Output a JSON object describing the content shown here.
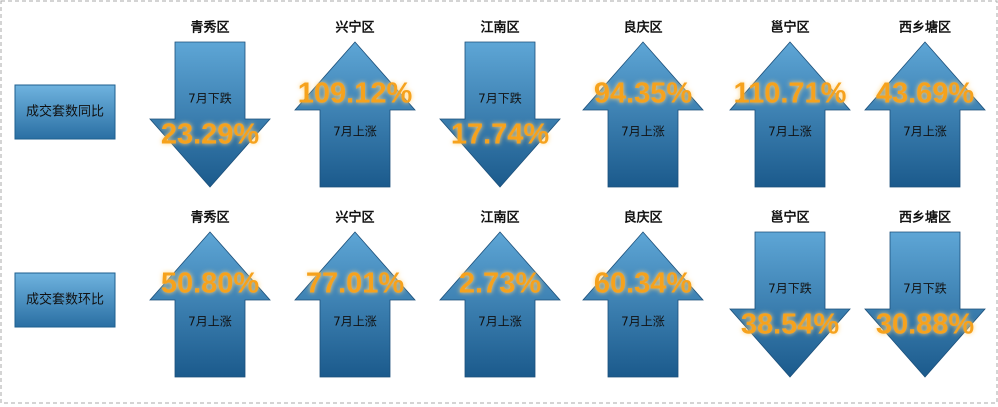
{
  "rows": [
    {
      "label": "成交套数同比",
      "items": [
        {
          "district": "青秀区",
          "trend": "7月下跌",
          "change": "23.29%"
        },
        {
          "district": "兴宁区",
          "trend": "7月上涨",
          "change": "109.12%"
        },
        {
          "district": "江南区",
          "trend": "7月下跌",
          "change": "17.74%"
        },
        {
          "district": "良庆区",
          "trend": "7月上涨",
          "change": "94.35%"
        },
        {
          "district": "邕宁区",
          "trend": "7月上涨",
          "change": "110.71%"
        },
        {
          "district": "西乡塘区",
          "trend": "7月上涨",
          "change": "43.69%"
        }
      ]
    },
    {
      "label": "成交套数环比",
      "items": [
        {
          "district": "青秀区",
          "trend": "7月上涨",
          "change": "50.80%"
        },
        {
          "district": "兴宁区",
          "trend": "7月上涨",
          "change": "77.01%"
        },
        {
          "district": "江南区",
          "trend": "7月上涨",
          "change": "2.73%"
        },
        {
          "district": "良庆区",
          "trend": "7月上涨",
          "change": "60.34%"
        },
        {
          "district": "邕宁区",
          "trend": "7月下跌",
          "change": "38.54%"
        },
        {
          "district": "西乡塘区",
          "trend": "7月下跌",
          "change": "30.88%"
        }
      ]
    }
  ]
}
